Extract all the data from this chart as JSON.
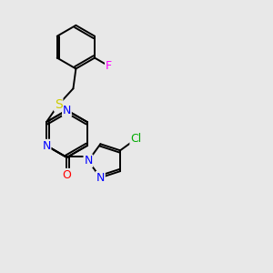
{
  "background_color": "#e8e8e8",
  "bond_color": "#000000",
  "atom_colors": {
    "N": "#0000ff",
    "O": "#ff0000",
    "S": "#cccc00",
    "F": "#ff00ff",
    "Cl": "#00aa00"
  },
  "font_size": 9,
  "fig_size": [
    3.0,
    3.0
  ],
  "dpi": 100
}
